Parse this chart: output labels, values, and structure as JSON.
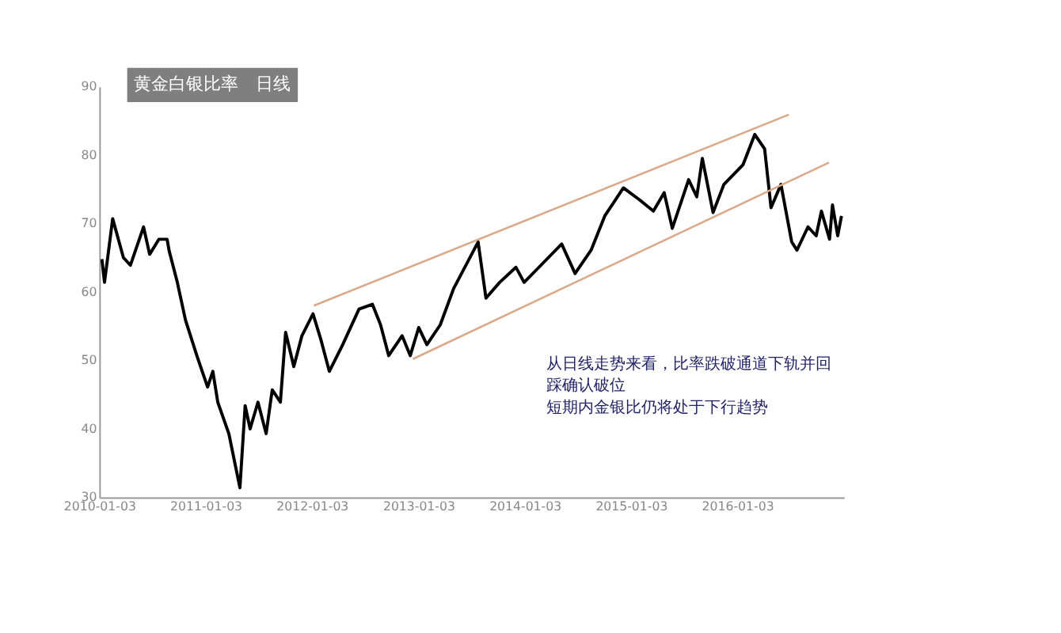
{
  "chart_data": {
    "type": "line",
    "title": "黄金白银比率　日线",
    "annotations": [
      "从日线走势来看，比率跌破通道下轨并回踩确认破位",
      "短期内金银比仍将处于下行趋势"
    ],
    "xlim": [
      "2010-01-03",
      "2017-01-03"
    ],
    "xticks": [
      "2010-01-03",
      "2011-01-03",
      "2012-01-03",
      "2013-01-03",
      "2014-01-03",
      "2015-01-03",
      "2016-01-03"
    ],
    "ylim": [
      30,
      90
    ],
    "yticks": [
      30,
      40,
      50,
      60,
      70,
      80,
      90
    ],
    "grid": false,
    "series": [
      {
        "color": "#000000",
        "x": [
          "2010-01-12",
          "2010-01-21",
          "2010-02-18",
          "2010-03-27",
          "2010-04-20",
          "2010-06-04",
          "2010-06-25",
          "2010-07-27",
          "2010-08-24",
          "2010-08-31",
          "2010-09-28",
          "2010-10-26",
          "2010-12-04",
          "2011-01-10",
          "2011-01-28",
          "2011-02-14",
          "2011-03-24",
          "2011-05-01",
          "2011-05-19",
          "2011-06-05",
          "2011-07-02",
          "2011-07-30",
          "2011-08-20",
          "2011-09-17",
          "2011-10-05",
          "2011-11-02",
          "2011-11-30",
          "2012-01-07",
          "2012-02-04",
          "2012-03-03",
          "2012-04-18",
          "2012-06-13",
          "2012-07-29",
          "2012-08-26",
          "2012-09-23",
          "2012-11-08",
          "2012-12-06",
          "2013-01-04",
          "2013-02-01",
          "2013-03-19",
          "2013-05-04",
          "2013-07-27",
          "2013-08-23",
          "2013-10-09",
          "2013-12-04",
          "2014-01-01",
          "2014-02-07",
          "2014-05-10",
          "2014-06-25",
          "2014-08-19",
          "2014-10-05",
          "2014-12-08",
          "2015-02-03",
          "2015-03-21",
          "2015-04-27",
          "2015-05-25",
          "2015-07-20",
          "2015-08-17",
          "2015-09-05",
          "2015-10-12",
          "2015-11-18",
          "2016-01-23",
          "2016-03-03",
          "2016-04-06",
          "2016-04-28",
          "2016-06-01",
          "2016-07-08",
          "2016-07-26",
          "2016-09-02",
          "2016-09-30",
          "2016-10-18",
          "2016-11-15",
          "2016-11-25",
          "2016-12-13",
          "2016-12-26"
        ],
        "values": [
          64.8,
          61.4,
          70.7,
          65,
          63.9,
          69.5,
          65.5,
          67.7,
          67.7,
          66,
          61.4,
          55.9,
          50.7,
          46.1,
          48.4,
          43.9,
          39.3,
          31.4,
          43.4,
          40,
          43.9,
          39.3,
          45.7,
          43.9,
          54.1,
          49.1,
          53.6,
          56.8,
          52.9,
          48.4,
          52.3,
          57.5,
          58.2,
          55.2,
          50.7,
          53.6,
          50.7,
          54.8,
          52.3,
          55.2,
          60.5,
          67.3,
          59.1,
          61.4,
          63.6,
          61.4,
          63,
          67,
          62.7,
          66.1,
          71.1,
          75.2,
          73.4,
          71.8,
          74.5,
          69.3,
          76.4,
          73.9,
          79.5,
          71.6,
          75.7,
          78.6,
          83,
          80.9,
          72.3,
          75.7,
          67.3,
          66.1,
          69.5,
          68.2,
          71.8,
          67.7,
          72.7,
          68.2,
          71.1
        ]
      },
      {
        "type": "line",
        "color": "#d9a98a",
        "x": [
          "2012-01-10",
          "2016-06-28"
        ],
        "values": [
          58,
          85.9
        ]
      },
      {
        "type": "line",
        "color": "#d9a98a",
        "x": [
          "2012-12-15",
          "2016-11-13"
        ],
        "values": [
          50.2,
          78.9
        ]
      }
    ]
  }
}
